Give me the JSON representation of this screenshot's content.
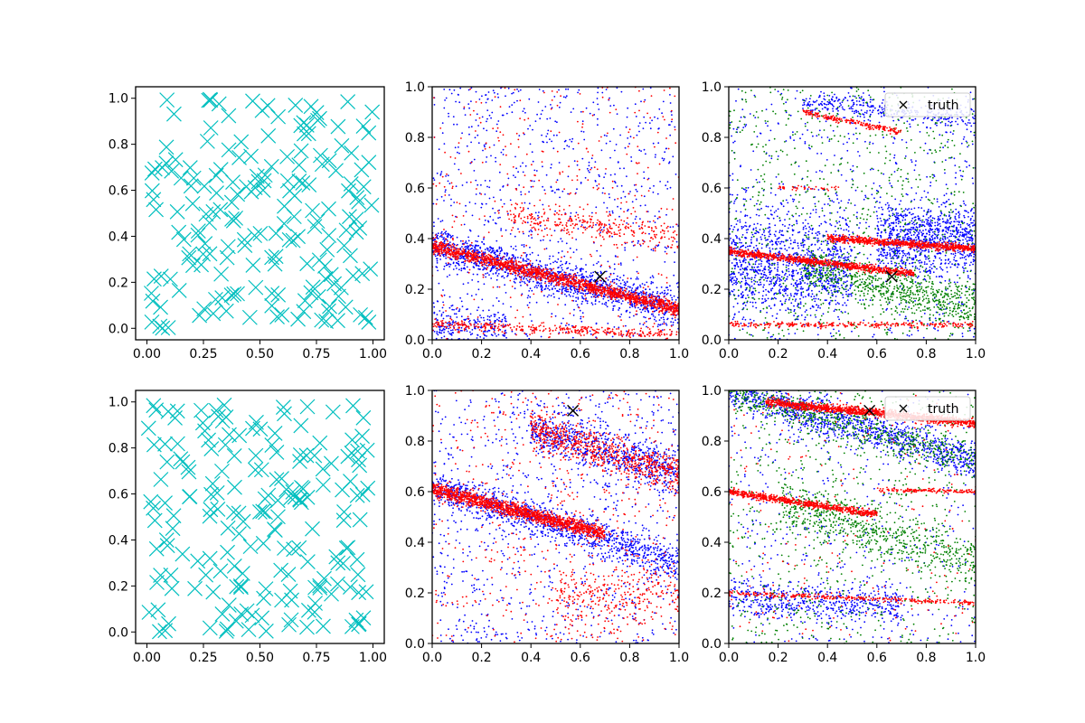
{
  "figure": {
    "background": "#ffffff"
  },
  "chart_data": [
    {
      "panel": "top-left",
      "type": "scatter",
      "marker": "x",
      "description_seed": 11,
      "series": [
        {
          "name": "samples",
          "color": "#00bfbf",
          "count": 190
        }
      ],
      "xlim": [
        -0.05,
        1.05
      ],
      "ylim": [
        -0.05,
        1.05
      ],
      "xticks": [
        0.0,
        0.25,
        0.5,
        0.75,
        1.0
      ],
      "xtick_labels": [
        "0.00",
        "0.25",
        "0.50",
        "0.75",
        "1.00"
      ],
      "yticks": [
        0.0,
        0.2,
        0.4,
        0.6,
        0.8,
        1.0
      ],
      "ytick_labels": [
        "0.0",
        "0.2",
        "0.4",
        "0.6",
        "0.8",
        "1.0"
      ]
    },
    {
      "panel": "top-middle",
      "type": "scatter",
      "marker": "dot",
      "xlim": [
        0,
        1
      ],
      "ylim": [
        0,
        1
      ],
      "xticks": [
        0.0,
        0.2,
        0.4,
        0.6,
        0.8,
        1.0
      ],
      "xtick_labels": [
        "0.0",
        "0.2",
        "0.4",
        "0.6",
        "0.8",
        "1.0"
      ],
      "yticks": [
        0.0,
        0.2,
        0.4,
        0.6,
        0.8,
        1.0
      ],
      "yticks_labels_dummy": null,
      "ytick_labels": [
        "0.0",
        "0.2",
        "0.4",
        "0.6",
        "0.8",
        "1.0"
      ],
      "truth": {
        "x": 0.68,
        "y": 0.25,
        "label": "truth",
        "color": "#000000"
      },
      "series": [
        {
          "name": "blue",
          "color": "#0000ff",
          "bands": [
            {
              "x0": 0.0,
              "x1": 1.0,
              "y0": 0.37,
              "slope": -0.25,
              "spread": 0.05,
              "n": 1300
            },
            {
              "x0": 0.0,
              "x1": 1.0,
              "y0": 0.5,
              "slope": 0.0,
              "spread": 0.5,
              "n": 900
            },
            {
              "x0": 0.0,
              "x1": 0.3,
              "y0": 0.05,
              "slope": 0.0,
              "spread": 0.05,
              "n": 200
            }
          ]
        },
        {
          "name": "red",
          "color": "#ff0000",
          "bands": [
            {
              "x0": 0.0,
              "x1": 1.0,
              "y0": 0.37,
              "slope": -0.25,
              "spread": 0.018,
              "n": 1600
            },
            {
              "x0": 0.3,
              "x1": 1.0,
              "y0": 0.55,
              "slope": -0.15,
              "spread": 0.04,
              "n": 300
            },
            {
              "x0": 0.0,
              "x1": 1.0,
              "y0": 0.06,
              "slope": -0.04,
              "spread": 0.015,
              "n": 350
            },
            {
              "x0": 0.0,
              "x1": 1.0,
              "y0": 0.5,
              "slope": 0.0,
              "spread": 0.5,
              "n": 400
            }
          ]
        }
      ]
    },
    {
      "panel": "top-right",
      "type": "scatter",
      "marker": "dot",
      "xlim": [
        0,
        1
      ],
      "ylim": [
        0,
        1
      ],
      "xticks": [
        0.0,
        0.2,
        0.4,
        0.6,
        0.8,
        1.0
      ],
      "xtick_labels": [
        "0.0",
        "0.2",
        "0.4",
        "0.6",
        "0.8",
        "1.0"
      ],
      "yticks": [
        0.0,
        0.2,
        0.4,
        0.6,
        0.8,
        1.0
      ],
      "ytick_labels": [
        "0.0",
        "0.2",
        "0.4",
        "0.6",
        "0.8",
        "1.0"
      ],
      "legend": {
        "label": "truth",
        "location": "top-right"
      },
      "truth": {
        "x": 0.66,
        "y": 0.25,
        "label": "truth",
        "color": "#000000"
      },
      "series": [
        {
          "name": "blue",
          "color": "#0000ff",
          "bands": [
            {
              "x0": 0.0,
              "x1": 0.5,
              "y0": 0.3,
              "slope": 0.0,
              "spread": 0.14,
              "n": 1100
            },
            {
              "x0": 0.6,
              "x1": 1.0,
              "y0": 0.4,
              "slope": 0.0,
              "spread": 0.1,
              "n": 900
            },
            {
              "x0": 0.3,
              "x1": 1.0,
              "y0": 0.97,
              "slope": -0.1,
              "spread": 0.03,
              "n": 300
            },
            {
              "x0": 0.0,
              "x1": 1.0,
              "y0": 0.5,
              "slope": 0.0,
              "spread": 0.5,
              "n": 700
            }
          ]
        },
        {
          "name": "green",
          "color": "#008000",
          "bands": [
            {
              "x0": 0.3,
              "x1": 1.0,
              "y0": 0.35,
              "slope": -0.22,
              "spread": 0.06,
              "n": 700
            },
            {
              "x0": 0.0,
              "x1": 1.0,
              "y0": 0.5,
              "slope": 0.0,
              "spread": 0.5,
              "n": 800
            }
          ]
        },
        {
          "name": "red",
          "color": "#ff0000",
          "bands": [
            {
              "x0": 0.0,
              "x1": 0.75,
              "y0": 0.35,
              "slope": -0.12,
              "spread": 0.01,
              "n": 900
            },
            {
              "x0": 0.4,
              "x1": 1.0,
              "y0": 0.43,
              "slope": -0.07,
              "spread": 0.01,
              "n": 800
            },
            {
              "x0": 0.0,
              "x1": 1.0,
              "y0": 0.06,
              "slope": 0.0,
              "spread": 0.008,
              "n": 300
            },
            {
              "x0": 0.3,
              "x1": 0.7,
              "y0": 0.96,
              "slope": -0.2,
              "spread": 0.008,
              "n": 200
            },
            {
              "x0": 0.2,
              "x1": 0.45,
              "y0": 0.6,
              "slope": 0.0,
              "spread": 0.006,
              "n": 40
            }
          ]
        }
      ]
    },
    {
      "panel": "bottom-left",
      "type": "scatter",
      "marker": "x",
      "description_seed": 29,
      "series": [
        {
          "name": "samples",
          "color": "#00bfbf",
          "count": 190
        }
      ],
      "xlim": [
        -0.05,
        1.05
      ],
      "ylim": [
        -0.05,
        1.05
      ],
      "xticks": [
        0.0,
        0.25,
        0.5,
        0.75,
        1.0
      ],
      "xtick_labels": [
        "0.00",
        "0.25",
        "0.50",
        "0.75",
        "1.00"
      ],
      "yticks": [
        0.0,
        0.2,
        0.4,
        0.6,
        0.8,
        1.0
      ],
      "ytick_labels": [
        "0.0",
        "0.2",
        "0.4",
        "0.6",
        "0.8",
        "1.0"
      ]
    },
    {
      "panel": "bottom-middle",
      "type": "scatter",
      "marker": "dot",
      "xlim": [
        0,
        1
      ],
      "ylim": [
        0,
        1
      ],
      "xticks": [
        0.0,
        0.2,
        0.4,
        0.6,
        0.8,
        1.0
      ],
      "xtick_labels": [
        "0.0",
        "0.2",
        "0.4",
        "0.6",
        "0.8",
        "1.0"
      ],
      "yticks": [
        0.0,
        0.2,
        0.4,
        0.6,
        0.8,
        1.0
      ],
      "ytick_labels": [
        "0.0",
        "0.2",
        "0.4",
        "0.6",
        "0.8",
        "1.0"
      ],
      "truth": {
        "x": 0.57,
        "y": 0.92,
        "label": "truth",
        "color": "#000000"
      },
      "series": [
        {
          "name": "blue",
          "color": "#0000ff",
          "bands": [
            {
              "x0": 0.0,
              "x1": 1.0,
              "y0": 0.62,
              "slope": -0.3,
              "spread": 0.05,
              "n": 1100
            },
            {
              "x0": 0.4,
              "x1": 1.0,
              "y0": 0.97,
              "slope": -0.3,
              "spread": 0.06,
              "n": 700
            },
            {
              "x0": 0.0,
              "x1": 1.0,
              "y0": 0.5,
              "slope": 0.0,
              "spread": 0.5,
              "n": 900
            }
          ]
        },
        {
          "name": "red",
          "color": "#ff0000",
          "bands": [
            {
              "x0": 0.0,
              "x1": 0.7,
              "y0": 0.61,
              "slope": -0.25,
              "spread": 0.02,
              "n": 1400
            },
            {
              "x0": 0.4,
              "x1": 1.0,
              "y0": 0.98,
              "slope": -0.32,
              "spread": 0.05,
              "n": 700
            },
            {
              "x0": 0.5,
              "x1": 1.0,
              "y0": 0.2,
              "slope": 0.0,
              "spread": 0.1,
              "n": 300
            },
            {
              "x0": 0.0,
              "x1": 1.0,
              "y0": 0.5,
              "slope": 0.0,
              "spread": 0.5,
              "n": 500
            }
          ]
        }
      ]
    },
    {
      "panel": "bottom-right",
      "type": "scatter",
      "marker": "dot",
      "xlim": [
        0,
        1
      ],
      "ylim": [
        0,
        1
      ],
      "xticks": [
        0.0,
        0.2,
        0.4,
        0.6,
        0.8,
        1.0
      ],
      "xtick_labels": [
        "0.0",
        "0.2",
        "0.4",
        "0.6",
        "0.8",
        "1.0"
      ],
      "yticks": [
        0.0,
        0.2,
        0.4,
        0.6,
        0.8,
        1.0
      ],
      "ytick_labels": [
        "0.0",
        "0.2",
        "0.4",
        "0.6",
        "0.8",
        "1.0"
      ],
      "legend": {
        "label": "truth",
        "location": "top-right"
      },
      "truth": {
        "x": 0.57,
        "y": 0.92,
        "label": "truth",
        "color": "#000000"
      },
      "series": [
        {
          "name": "blue",
          "color": "#0000ff",
          "bands": [
            {
              "x0": 0.0,
              "x1": 1.0,
              "y0": 1.0,
              "slope": -0.28,
              "spread": 0.05,
              "n": 1100
            },
            {
              "x0": 0.0,
              "x1": 0.7,
              "y0": 0.18,
              "slope": -0.05,
              "spread": 0.05,
              "n": 500
            },
            {
              "x0": 0.0,
              "x1": 1.0,
              "y0": 0.5,
              "slope": 0.0,
              "spread": 0.5,
              "n": 500
            }
          ]
        },
        {
          "name": "green",
          "color": "#008000",
          "bands": [
            {
              "x0": 0.0,
              "x1": 1.0,
              "y0": 1.0,
              "slope": -0.28,
              "spread": 0.05,
              "n": 600
            },
            {
              "x0": 0.2,
              "x1": 1.0,
              "y0": 0.62,
              "slope": -0.3,
              "spread": 0.07,
              "n": 600
            },
            {
              "x0": 0.0,
              "x1": 1.0,
              "y0": 0.5,
              "slope": 0.0,
              "spread": 0.5,
              "n": 700
            }
          ]
        },
        {
          "name": "red",
          "color": "#ff0000",
          "bands": [
            {
              "x0": 0.15,
              "x1": 1.0,
              "y0": 0.97,
              "slope": -0.1,
              "spread": 0.012,
              "n": 1200
            },
            {
              "x0": 0.0,
              "x1": 0.6,
              "y0": 0.6,
              "slope": -0.15,
              "spread": 0.01,
              "n": 700
            },
            {
              "x0": 0.0,
              "x1": 1.0,
              "y0": 0.2,
              "slope": -0.04,
              "spread": 0.006,
              "n": 300
            },
            {
              "x0": 0.6,
              "x1": 1.0,
              "y0": 0.62,
              "slope": -0.02,
              "spread": 0.006,
              "n": 150
            },
            {
              "x0": 0.0,
              "x1": 1.0,
              "y0": 0.5,
              "slope": 0.0,
              "spread": 0.5,
              "n": 200
            }
          ]
        }
      ]
    }
  ]
}
